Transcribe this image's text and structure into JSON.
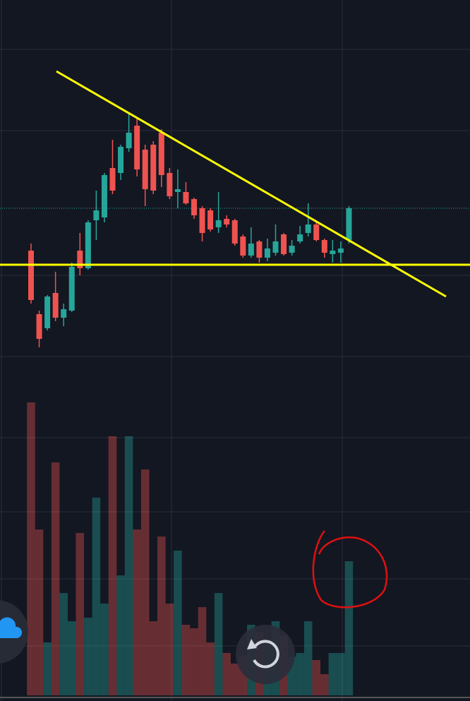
{
  "chart_data": {
    "type": "candlestick",
    "up_color": "#26a69a",
    "down_color": "#ef5350",
    "ylim": [
      0,
      993
    ],
    "y2lim": [
      0,
      985
    ],
    "open": [
      638,
      548,
      528,
      578,
      543,
      553,
      638,
      613,
      681,
      685,
      755,
      748,
      783,
      815,
      781,
      788,
      805,
      748,
      721,
      721,
      711,
      698,
      695,
      671,
      683,
      681,
      658,
      631,
      651,
      628,
      635,
      661,
      635,
      651,
      663,
      675,
      653,
      633,
      635,
      653
    ],
    "high": [
      648,
      553,
      575,
      608,
      563,
      621,
      663,
      681,
      723,
      748,
      795,
      788,
      831,
      825,
      788,
      793,
      810,
      755,
      753,
      735,
      713,
      701,
      698,
      721,
      688,
      683,
      661,
      671,
      653,
      655,
      675,
      663,
      653,
      673,
      705,
      678,
      655,
      653,
      651,
      701
    ],
    "low": [
      563,
      501,
      525,
      538,
      531,
      551,
      603,
      611,
      653,
      678,
      718,
      738,
      778,
      743,
      701,
      718,
      728,
      711,
      698,
      703,
      683,
      651,
      665,
      663,
      671,
      645,
      628,
      628,
      621,
      623,
      631,
      631,
      631,
      648,
      658,
      651,
      628,
      621,
      621,
      648
    ],
    "close": [
      568,
      513,
      573,
      543,
      555,
      615,
      613,
      678,
      695,
      745,
      723,
      785,
      805,
      753,
      725,
      723,
      745,
      715,
      725,
      705,
      688,
      663,
      668,
      681,
      675,
      648,
      631,
      648,
      628,
      641,
      651,
      633,
      645,
      661,
      675,
      653,
      635,
      638,
      641,
      698
    ],
    "volume": [
      415,
      235,
      75,
      330,
      145,
      105,
      230,
      110,
      280,
      130,
      367,
      170,
      367,
      235,
      320,
      105,
      225,
      130,
      205,
      100,
      95,
      125,
      75,
      145,
      60,
      45,
      55,
      100,
      90,
      80,
      105,
      85,
      55,
      60,
      105,
      50,
      30,
      60,
      60,
      190
    ]
  }
}
